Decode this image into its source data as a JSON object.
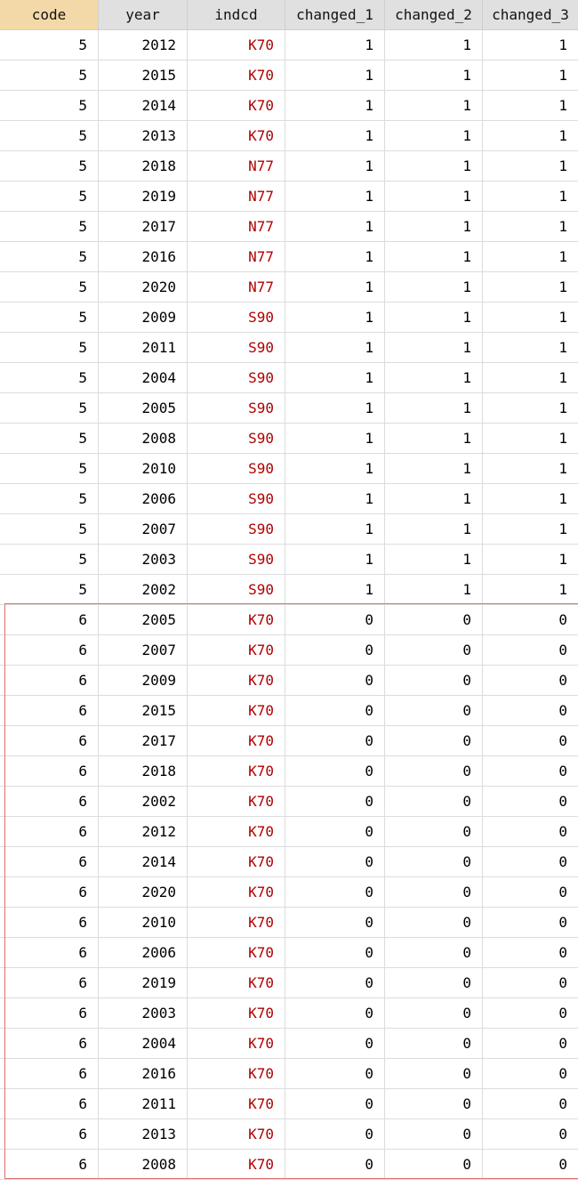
{
  "columns": [
    "code",
    "year",
    "indcd",
    "changed_1",
    "changed_2",
    "changed_3"
  ],
  "rows": [
    [
      "5",
      "2012",
      "K70",
      "1",
      "1",
      "1"
    ],
    [
      "5",
      "2015",
      "K70",
      "1",
      "1",
      "1"
    ],
    [
      "5",
      "2014",
      "K70",
      "1",
      "1",
      "1"
    ],
    [
      "5",
      "2013",
      "K70",
      "1",
      "1",
      "1"
    ],
    [
      "5",
      "2018",
      "N77",
      "1",
      "1",
      "1"
    ],
    [
      "5",
      "2019",
      "N77",
      "1",
      "1",
      "1"
    ],
    [
      "5",
      "2017",
      "N77",
      "1",
      "1",
      "1"
    ],
    [
      "5",
      "2016",
      "N77",
      "1",
      "1",
      "1"
    ],
    [
      "5",
      "2020",
      "N77",
      "1",
      "1",
      "1"
    ],
    [
      "5",
      "2009",
      "S90",
      "1",
      "1",
      "1"
    ],
    [
      "5",
      "2011",
      "S90",
      "1",
      "1",
      "1"
    ],
    [
      "5",
      "2004",
      "S90",
      "1",
      "1",
      "1"
    ],
    [
      "5",
      "2005",
      "S90",
      "1",
      "1",
      "1"
    ],
    [
      "5",
      "2008",
      "S90",
      "1",
      "1",
      "1"
    ],
    [
      "5",
      "2010",
      "S90",
      "1",
      "1",
      "1"
    ],
    [
      "5",
      "2006",
      "S90",
      "1",
      "1",
      "1"
    ],
    [
      "5",
      "2007",
      "S90",
      "1",
      "1",
      "1"
    ],
    [
      "5",
      "2003",
      "S90",
      "1",
      "1",
      "1"
    ],
    [
      "5",
      "2002",
      "S90",
      "1",
      "1",
      "1"
    ],
    [
      "6",
      "2005",
      "K70",
      "0",
      "0",
      "0"
    ],
    [
      "6",
      "2007",
      "K70",
      "0",
      "0",
      "0"
    ],
    [
      "6",
      "2009",
      "K70",
      "0",
      "0",
      "0"
    ],
    [
      "6",
      "2015",
      "K70",
      "0",
      "0",
      "0"
    ],
    [
      "6",
      "2017",
      "K70",
      "0",
      "0",
      "0"
    ],
    [
      "6",
      "2018",
      "K70",
      "0",
      "0",
      "0"
    ],
    [
      "6",
      "2002",
      "K70",
      "0",
      "0",
      "0"
    ],
    [
      "6",
      "2012",
      "K70",
      "0",
      "0",
      "0"
    ],
    [
      "6",
      "2014",
      "K70",
      "0",
      "0",
      "0"
    ],
    [
      "6",
      "2020",
      "K70",
      "0",
      "0",
      "0"
    ],
    [
      "6",
      "2010",
      "K70",
      "0",
      "0",
      "0"
    ],
    [
      "6",
      "2006",
      "K70",
      "0",
      "0",
      "0"
    ],
    [
      "6",
      "2019",
      "K70",
      "0",
      "0",
      "0"
    ],
    [
      "6",
      "2003",
      "K70",
      "0",
      "0",
      "0"
    ],
    [
      "6",
      "2004",
      "K70",
      "0",
      "0",
      "0"
    ],
    [
      "6",
      "2016",
      "K70",
      "0",
      "0",
      "0"
    ],
    [
      "6",
      "2011",
      "K70",
      "0",
      "0",
      "0"
    ],
    [
      "6",
      "2013",
      "K70",
      "0",
      "0",
      "0"
    ],
    [
      "6",
      "2008",
      "K70",
      "0",
      "0",
      "0"
    ]
  ],
  "colors": {
    "selected_header_bg": "#f3d9a7",
    "header_bg": "#e0e0e0",
    "string_value_color": "#b00000",
    "highlight_border": "#e06d6d"
  }
}
